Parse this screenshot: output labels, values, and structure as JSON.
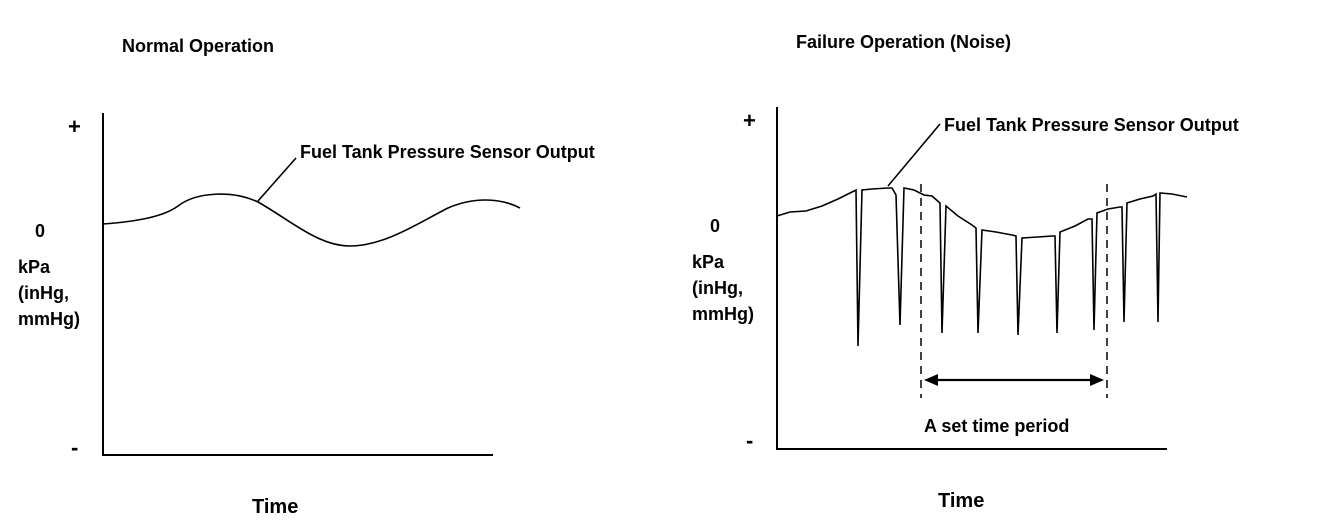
{
  "panels": [
    {
      "title": "Normal Operation",
      "y_plus": "+",
      "y_zero": "0",
      "y_minus": "-",
      "y_unit_lines": [
        "kPa",
        "(inHg,",
        "mmHg)"
      ],
      "x_label": "Time",
      "curve_label": "Fuel Tank Pressure Sensor Output"
    },
    {
      "title": "Failure Operation (Noise)",
      "y_plus": "+",
      "y_zero": "0",
      "y_minus": "-",
      "y_unit_lines": [
        "kPa",
        "(inHg,",
        "mmHg)"
      ],
      "x_label": "Time",
      "curve_label": "Fuel Tank Pressure Sensor Output",
      "period_label": "A set time period"
    }
  ]
}
